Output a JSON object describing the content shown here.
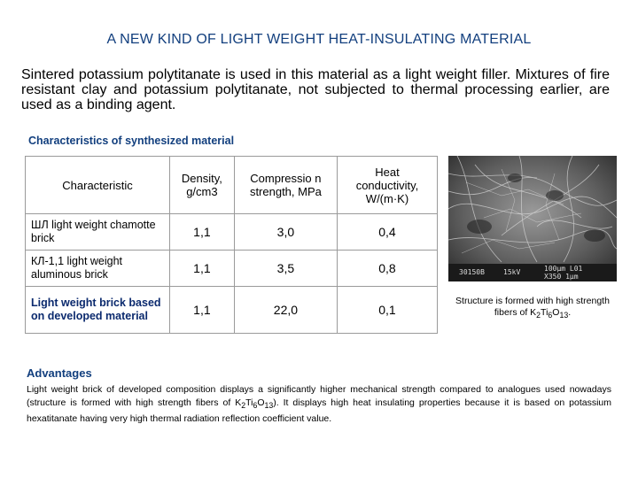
{
  "title": "A NEW KIND OF LIGHT WEIGHT HEAT-INSULATING MATERIAL",
  "intro": "Sintered potassium polytitanate is used in this material as a light weight filler. Mixtures of fire resistant clay and potassium polytitanate, not subjected to thermal processing earlier, are used as a binding agent.",
  "table_title": "Characteristics of synthesized material",
  "table": {
    "headers": [
      "Characteristic",
      "Density, g/cm3",
      "Compressio n strength, MPa",
      "Heat conductivity, W/(m·K)"
    ],
    "rows": [
      {
        "name": "ШЛ light weight chamotte brick",
        "density": "1,1",
        "strength": "3,0",
        "conductivity": "0,4"
      },
      {
        "name": "КЛ-1,1 light weight aluminous brick",
        "density": "1,1",
        "strength": "3,5",
        "conductivity": "0,8"
      },
      {
        "name": "Light weight brick based on developed material",
        "density": "1,1",
        "strength": "22,0",
        "conductivity": "0,1"
      }
    ]
  },
  "micrograph": {
    "scale_left": "30150B",
    "scale_mid": "15kV",
    "scale_right_top": "100μm L01",
    "scale_right_bottom": "X350 1μm"
  },
  "caption": {
    "text": "Structure is formed with high strength fibers of K",
    "sub1": "2",
    "mid": "Ti",
    "sub2": "6",
    "mid2": "O",
    "sub3": "13",
    "end": "."
  },
  "advantages": {
    "title": "Advantages",
    "part1": "Light weight brick of developed composition displays a significantly higher mechanical strength compared to analogues used nowadays (structure is formed with high strength fibers of K",
    "sub1": "2",
    "mid1": "Ti",
    "sub2": "6",
    "mid2": "O",
    "sub3": "13",
    "part2": "). It displays high heat insulating properties because it is based on potassium hexatitanate having very high thermal radiation reflection coefficient value."
  }
}
